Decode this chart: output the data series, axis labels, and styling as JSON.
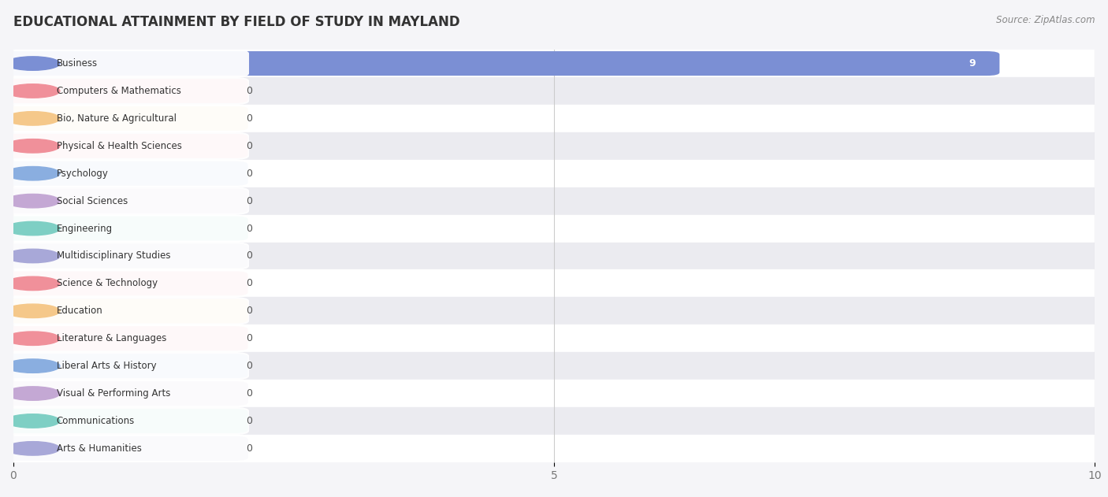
{
  "title": "EDUCATIONAL ATTAINMENT BY FIELD OF STUDY IN MAYLAND",
  "source": "Source: ZipAtlas.com",
  "categories": [
    "Business",
    "Computers & Mathematics",
    "Bio, Nature & Agricultural",
    "Physical & Health Sciences",
    "Psychology",
    "Social Sciences",
    "Engineering",
    "Multidisciplinary Studies",
    "Science & Technology",
    "Education",
    "Literature & Languages",
    "Liberal Arts & History",
    "Visual & Performing Arts",
    "Communications",
    "Arts & Humanities"
  ],
  "values": [
    9,
    0,
    0,
    0,
    0,
    0,
    0,
    0,
    0,
    0,
    0,
    0,
    0,
    0,
    0
  ],
  "bar_colors": [
    "#7b8fd4",
    "#f0909a",
    "#f5c88a",
    "#f0909a",
    "#8aaee0",
    "#c4a8d4",
    "#7ecfc4",
    "#a8a8d8",
    "#f0909a",
    "#f5c88a",
    "#f0909a",
    "#8aaee0",
    "#c4a8d4",
    "#7ecfc4",
    "#a8a8d8"
  ],
  "xlim": [
    0,
    10
  ],
  "xticks": [
    0,
    5,
    10
  ],
  "bg_color": "#f5f5f8",
  "row_even_color": "#ffffff",
  "row_odd_color": "#ebebf0",
  "grid_color": "#cccccc",
  "title_fontsize": 12,
  "label_fontsize": 8.5,
  "value_label_color_nonzero": "#ffffff",
  "value_label_color_zero": "#555555"
}
